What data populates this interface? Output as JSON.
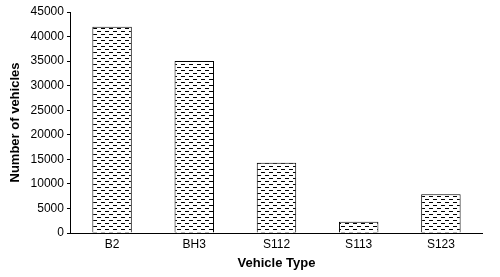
{
  "chart_data": {
    "type": "bar",
    "x_label": "Vehicle Type",
    "y_label": "Number of vehicles",
    "categories": [
      "B2",
      "BH3",
      "S112",
      "S113",
      "S123"
    ],
    "values": [
      42000,
      35000,
      14300,
      2300,
      7900
    ],
    "color": "#ffffff",
    "ylim": [
      0,
      45000
    ],
    "yticks": [
      0,
      5000,
      10000,
      15000,
      20000,
      25000,
      30000,
      35000,
      40000,
      45000
    ],
    "grid": false
  }
}
